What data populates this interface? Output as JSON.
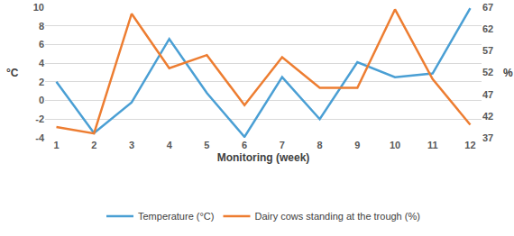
{
  "chart_data": {
    "type": "line",
    "xlabel": "Monitoring (week)",
    "ylabel": "°C",
    "y2label": "%",
    "categories": [
      "1",
      "2",
      "3",
      "4",
      "5",
      "6",
      "7",
      "8",
      "9",
      "10",
      "11",
      "12"
    ],
    "series": [
      {
        "name": "Temperature (°C)",
        "color": "#4a9fd4",
        "values": [
          2,
          -3.5,
          -0.2,
          6.6,
          0.8,
          -3.9,
          2.5,
          -2,
          4.1,
          2.5,
          2.9,
          9.9
        ]
      },
      {
        "name": "Dairy cows standing at the trough (%)",
        "color": "#ed7d31",
        "axis": "y2",
        "values": [
          39.5,
          38,
          65.5,
          53,
          56,
          44.5,
          55.5,
          48.5,
          48.5,
          66.5,
          50.5,
          40
        ]
      }
    ],
    "ylim": [
      -4,
      10
    ],
    "yticks": [
      -4,
      -2,
      0,
      2,
      4,
      6,
      8,
      10
    ],
    "y2lim": [
      37,
      67
    ],
    "y2ticks": [
      37,
      42,
      47,
      52,
      57,
      62,
      67
    ],
    "grid": true,
    "legend": "bottom"
  }
}
